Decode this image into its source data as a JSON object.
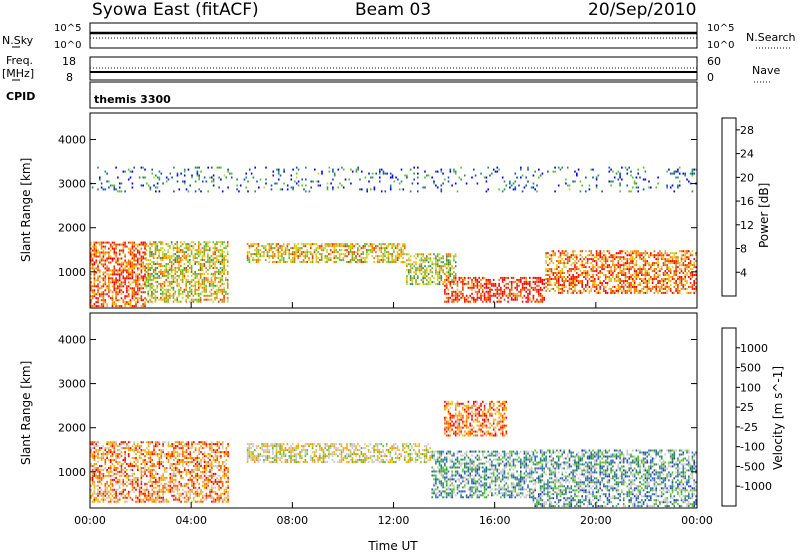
{
  "header": {
    "station": "Syowa East (fitACF)",
    "beam": "Beam 03",
    "date": "20/Sep/2010"
  },
  "strips": {
    "nsky_label": "N.Sky",
    "nsearch_label": "N.Search",
    "nsky_ticks": [
      "10^5",
      "10^0"
    ],
    "nsearch_ticks": [
      "10^5",
      "10^0"
    ],
    "freq_label_1": "Freq.",
    "freq_label_2": "[MHz]",
    "freq_ticks": [
      "18",
      "8"
    ],
    "nave_label": "Nave",
    "nave_ticks": [
      "60",
      "0"
    ],
    "cpid_label": "CPID",
    "cpid_value": "themis 3300"
  },
  "colors": {
    "power_scale": [
      "#0000ff",
      "#1a4db3",
      "#2e8b57",
      "#5cbf2a",
      "#c8d23c",
      "#f5b900",
      "#f07800",
      "#e83a00",
      "#ff0000"
    ],
    "velocity_scale": [
      "#ff0000",
      "#ff5500",
      "#ff9900",
      "#f5b900",
      "#c8c8c8",
      "#c8c8c8",
      "#5cbf2a",
      "#2e8b57",
      "#3366cc",
      "#1a3fb3"
    ]
  },
  "chart_data": [
    {
      "type": "heatmap",
      "title": "",
      "xlabel": "",
      "ylabel": "Slant Range [km]",
      "x_ticks": [
        "00:00",
        "04:00",
        "08:00",
        "12:00",
        "16:00",
        "20:00",
        "00:00"
      ],
      "y_ticks": [
        "1000",
        "2000",
        "3000",
        "4000"
      ],
      "x_range_hours": [
        0,
        24
      ],
      "ylim": [
        180,
        4600
      ],
      "colorbar": {
        "label": "Power [dB]",
        "ticks": [
          "4",
          "8",
          "12",
          "16",
          "20",
          "24",
          "28"
        ],
        "range": [
          0,
          30
        ]
      },
      "regions": [
        {
          "t": [
            0,
            2.2
          ],
          "r": [
            200,
            1700
          ],
          "level": 0.8
        },
        {
          "t": [
            2.2,
            5.5
          ],
          "r": [
            300,
            1700
          ],
          "level": 0.55
        },
        {
          "t": [
            6.2,
            12.5
          ],
          "r": [
            1200,
            1650
          ],
          "level": 0.6
        },
        {
          "t": [
            12.5,
            14.5
          ],
          "r": [
            700,
            1400
          ],
          "level": 0.5
        },
        {
          "t": [
            14,
            18
          ],
          "r": [
            300,
            900
          ],
          "level": 0.9
        },
        {
          "t": [
            18,
            24
          ],
          "r": [
            500,
            1500
          ],
          "level": 0.75
        },
        {
          "t": [
            0,
            24
          ],
          "r": [
            2800,
            3400
          ],
          "level": 0.2
        }
      ]
    },
    {
      "type": "heatmap",
      "title": "",
      "xlabel": "Time UT",
      "ylabel": "Slant Range [km]",
      "x_ticks": [
        "00:00",
        "04:00",
        "08:00",
        "12:00",
        "16:00",
        "20:00",
        "00:00"
      ],
      "y_ticks": [
        "1000",
        "2000",
        "3000",
        "4000"
      ],
      "x_range_hours": [
        0,
        24
      ],
      "ylim": [
        180,
        4600
      ],
      "colorbar": {
        "label": "Velocity [m s^-1]",
        "ticks": [
          "1000",
          "500",
          "100",
          "25",
          "-25",
          "-100",
          "-500",
          "-1000"
        ],
        "range": [
          -1000,
          1000
        ]
      },
      "regions": [
        {
          "t": [
            0,
            5.5
          ],
          "r": [
            300,
            1700
          ],
          "level": 0.25
        },
        {
          "t": [
            6.2,
            13.5
          ],
          "r": [
            1200,
            1650
          ],
          "level": 0.45
        },
        {
          "t": [
            13.5,
            17.5
          ],
          "r": [
            400,
            1500
          ],
          "level": 0.68
        },
        {
          "t": [
            17.5,
            24
          ],
          "r": [
            200,
            1500
          ],
          "level": 0.7
        },
        {
          "t": [
            14,
            16.5
          ],
          "r": [
            1800,
            2600
          ],
          "level": 0.2
        }
      ]
    }
  ]
}
